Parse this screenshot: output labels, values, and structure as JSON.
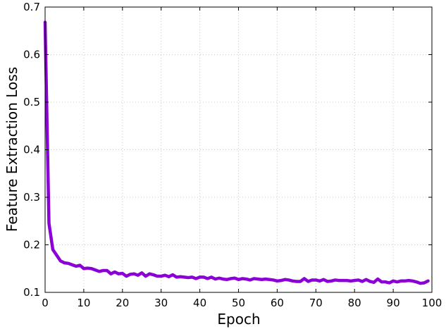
{
  "chart_data": {
    "type": "line",
    "title": "",
    "xlabel": "Epoch",
    "ylabel": "Feature Extraction Loss",
    "xlim": [
      0,
      100
    ],
    "ylim": [
      0.1,
      0.7
    ],
    "xticks": [
      0,
      10,
      20,
      30,
      40,
      50,
      60,
      70,
      80,
      90,
      100
    ],
    "yticks": [
      0.1,
      0.2,
      0.3,
      0.4,
      0.5,
      0.6,
      0.7
    ],
    "xtick_labels": [
      "0",
      "10",
      "20",
      "30",
      "40",
      "50",
      "60",
      "70",
      "80",
      "90",
      "100"
    ],
    "ytick_labels": [
      "0.1",
      "0.2",
      "0.3",
      "0.4",
      "0.5",
      "0.6",
      "0.7"
    ],
    "grid": true,
    "legend": "none",
    "series": [
      {
        "color": "#8B00D6",
        "x": [
          0,
          1,
          2,
          3,
          4,
          5,
          6,
          7,
          8,
          9,
          10,
          11,
          12,
          13,
          14,
          15,
          16,
          17,
          18,
          19,
          20,
          21,
          22,
          23,
          24,
          25,
          26,
          27,
          28,
          29,
          30,
          31,
          32,
          33,
          34,
          35,
          36,
          37,
          38,
          39,
          40,
          41,
          42,
          43,
          44,
          45,
          46,
          47,
          48,
          49,
          50,
          51,
          52,
          53,
          54,
          55,
          56,
          57,
          58,
          59,
          60,
          61,
          62,
          63,
          64,
          65,
          66,
          67,
          68,
          69,
          70,
          71,
          72,
          73,
          74,
          75,
          76,
          77,
          78,
          79,
          80,
          81,
          82,
          83,
          84,
          85,
          86,
          87,
          88,
          89,
          90,
          91,
          92,
          93,
          94,
          95,
          96,
          97,
          98,
          99
        ],
        "y": [
          0.668,
          0.245,
          0.19,
          0.178,
          0.166,
          0.162,
          0.161,
          0.158,
          0.155,
          0.157,
          0.15,
          0.151,
          0.15,
          0.147,
          0.144,
          0.146,
          0.146,
          0.139,
          0.143,
          0.139,
          0.14,
          0.134,
          0.138,
          0.139,
          0.136,
          0.141,
          0.134,
          0.139,
          0.137,
          0.134,
          0.134,
          0.136,
          0.133,
          0.137,
          0.132,
          0.133,
          0.132,
          0.131,
          0.132,
          0.129,
          0.132,
          0.132,
          0.129,
          0.132,
          0.128,
          0.13,
          0.128,
          0.127,
          0.129,
          0.13,
          0.127,
          0.129,
          0.128,
          0.126,
          0.129,
          0.128,
          0.127,
          0.128,
          0.127,
          0.126,
          0.124,
          0.125,
          0.127,
          0.126,
          0.124,
          0.123,
          0.123,
          0.129,
          0.123,
          0.126,
          0.126,
          0.124,
          0.127,
          0.123,
          0.124,
          0.126,
          0.125,
          0.125,
          0.125,
          0.124,
          0.125,
          0.126,
          0.123,
          0.127,
          0.123,
          0.121,
          0.128,
          0.122,
          0.122,
          0.12,
          0.124,
          0.122,
          0.124,
          0.124,
          0.125,
          0.124,
          0.122,
          0.119,
          0.12,
          0.124
        ]
      }
    ]
  }
}
